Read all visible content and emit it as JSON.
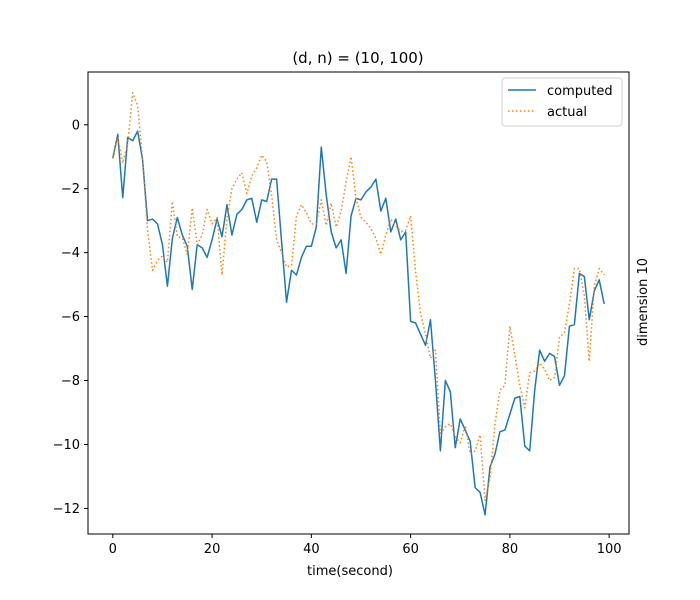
{
  "chart_data": {
    "type": "line",
    "title": "(d, n) = (10, 100)",
    "xlabel": "time(second)",
    "ylabel": "dimension 10",
    "xlim": [
      -5,
      104
    ],
    "ylim": [
      -12.8,
      1.65
    ],
    "xticks": [
      0,
      20,
      40,
      60,
      80,
      100
    ],
    "yticks": [
      0,
      -2,
      -4,
      -6,
      -8,
      -10,
      -12
    ],
    "xtick_labels": [
      "0",
      "20",
      "40",
      "60",
      "80",
      "100"
    ],
    "ytick_labels": [
      "0",
      "−2",
      "−4",
      "−6",
      "−8",
      "−10",
      "−12"
    ],
    "grid": false,
    "legend_position": "top-right",
    "series": [
      {
        "name": "computed",
        "color": "#1f77b4",
        "style": "solid",
        "values": [
          -1.05,
          -0.3,
          -2.28,
          -0.4,
          -0.5,
          -0.2,
          -1.1,
          -3.0,
          -2.95,
          -3.1,
          -3.75,
          -5.05,
          -3.55,
          -2.9,
          -3.45,
          -3.8,
          -5.15,
          -3.75,
          -3.85,
          -4.15,
          -3.6,
          -2.95,
          -3.5,
          -2.5,
          -3.45,
          -2.8,
          -2.65,
          -2.35,
          -2.3,
          -3.05,
          -2.35,
          -2.4,
          -1.7,
          -1.7,
          -3.65,
          -5.55,
          -4.55,
          -4.7,
          -4.15,
          -3.8,
          -3.8,
          -3.2,
          -0.7,
          -2.2,
          -3.35,
          -3.85,
          -3.6,
          -4.65,
          -2.85,
          -2.3,
          -2.35,
          -2.1,
          -1.95,
          -1.7,
          -2.7,
          -2.3,
          -3.35,
          -2.95,
          -3.6,
          -3.35,
          -6.15,
          -6.2,
          -6.55,
          -6.9,
          -6.1,
          -8.0,
          -10.2,
          -8.0,
          -8.35,
          -10.1,
          -9.2,
          -9.55,
          -9.9,
          -11.35,
          -11.5,
          -12.2,
          -10.7,
          -10.3,
          -9.6,
          -9.55,
          -9.05,
          -8.55,
          -8.5,
          -10.05,
          -10.2,
          -8.3,
          -7.05,
          -7.4,
          -7.15,
          -7.25,
          -8.15,
          -7.85,
          -6.3,
          -6.25,
          -4.65,
          -4.75,
          -6.1,
          -5.2,
          -4.85,
          -5.6
        ]
      },
      {
        "name": "actual",
        "color": "#ff7f0e",
        "style": "dotted",
        "values": [
          -1.0,
          -0.4,
          -1.2,
          -0.6,
          1.0,
          0.6,
          -1.1,
          -3.3,
          -4.55,
          -4.25,
          -4.1,
          -4.3,
          -2.4,
          -3.5,
          -3.55,
          -4.05,
          -2.6,
          -3.75,
          -3.45,
          -2.65,
          -3.1,
          -2.9,
          -4.7,
          -2.9,
          -2.0,
          -1.7,
          -1.5,
          -2.15,
          -1.6,
          -1.35,
          -0.95,
          -1.15,
          -2.2,
          -3.6,
          -4.0,
          -4.45,
          -4.4,
          -2.85,
          -2.5,
          -2.75,
          -3.1,
          -3.1,
          -2.35,
          -3.15,
          -2.45,
          -3.2,
          -2.7,
          -1.8,
          -1.0,
          -2.3,
          -2.9,
          -3.05,
          -3.25,
          -3.55,
          -4.05,
          -3.45,
          -2.95,
          -3.15,
          -3.35,
          -3.3,
          -2.85,
          -4.6,
          -5.9,
          -6.55,
          -7.3,
          -7.05,
          -9.65,
          -9.45,
          -9.35,
          -9.75,
          -9.95,
          -9.4,
          -10.3,
          -10.2,
          -9.7,
          -11.75,
          -11.05,
          -9.35,
          -8.3,
          -8.15,
          -6.3,
          -7.2,
          -8.15,
          -8.85,
          -7.75,
          -7.7,
          -7.45,
          -7.65,
          -8.0,
          -7.9,
          -6.65,
          -6.5,
          -5.6,
          -4.5,
          -4.5,
          -5.35,
          -7.4,
          -5.05,
          -4.5,
          -4.7
        ]
      }
    ]
  }
}
